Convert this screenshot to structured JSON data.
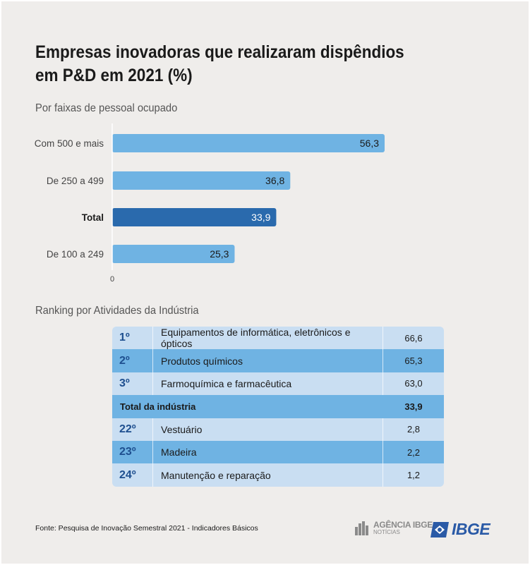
{
  "title_line1": "Empresas inovadoras que realizaram dispêndios",
  "title_line2": "em P&D em 2021 (%)",
  "subtitle_chart": "Por faixas de pessoal ocupado",
  "subtitle_ranking": "Ranking por Atividades da Indústria",
  "chart_data": {
    "type": "bar",
    "orientation": "horizontal",
    "categories": [
      "Com 500 e mais",
      "De 250 a 499",
      "Total",
      "De 100 a 249"
    ],
    "values": [
      56.3,
      36.8,
      33.9,
      25.3
    ],
    "value_labels": [
      "56,3",
      "36,8",
      "33,9",
      "25,3"
    ],
    "highlight_category": "Total",
    "axis_tick_label": "0",
    "xlim": [
      0,
      60
    ],
    "colors": {
      "bar": "#6fb3e3",
      "highlight": "#2a6aad",
      "axis": "#ffffff"
    }
  },
  "ranking": {
    "rows": [
      {
        "rank": "1º",
        "activity": "Equipamentos de informática, eletrônicos e ópticos",
        "value": "66,6",
        "style": "light"
      },
      {
        "rank": "2º",
        "activity": "Produtos químicos",
        "value": "65,3",
        "style": "dark"
      },
      {
        "rank": "3º",
        "activity": "Farmoquímica e farmacêutica",
        "value": "63,0",
        "style": "light"
      }
    ],
    "total": {
      "label": "Total da indústria",
      "value": "33,9"
    },
    "rows_bottom": [
      {
        "rank": "22º",
        "activity": "Vestuário",
        "value": "2,8",
        "style": "light"
      },
      {
        "rank": "23º",
        "activity": "Madeira",
        "value": "2,2",
        "style": "dark"
      },
      {
        "rank": "24º",
        "activity": "Manutenção e reparação",
        "value": "1,2",
        "style": "light"
      }
    ]
  },
  "source": "Fonte: Pesquisa de Inovação Semestral 2021 - Indicadores Básicos",
  "logos": {
    "agencia_line1": "AGÊNCIA IBGE",
    "agencia_line2": "NOTÍCIAS",
    "ibge_word": "IBGE"
  }
}
